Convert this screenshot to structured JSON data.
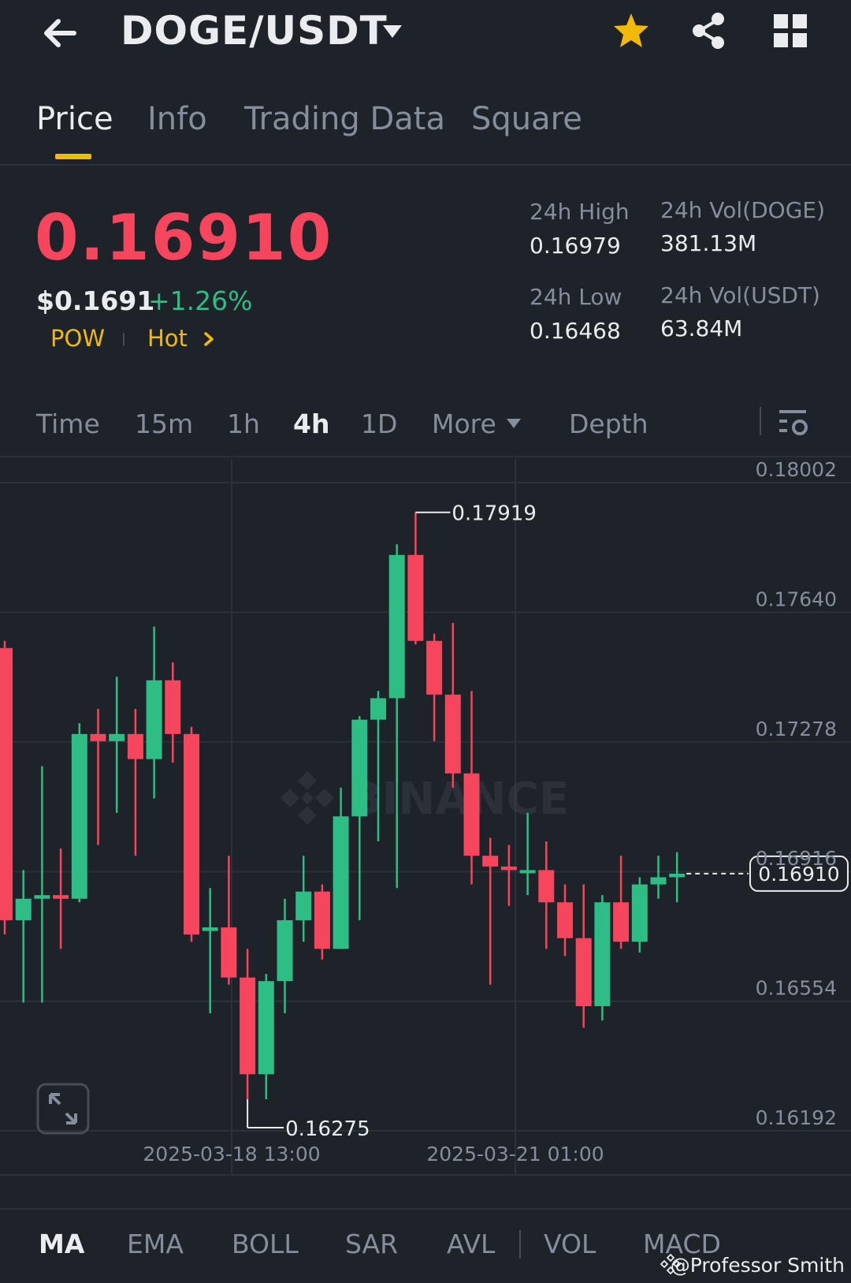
{
  "header": {
    "pair": "DOGE/USDT",
    "icons": [
      "back-arrow-icon",
      "chevron-down-icon",
      "star-icon",
      "share-icon",
      "grid-menu-icon"
    ],
    "star_color": "#f0b90b"
  },
  "tabs": [
    {
      "label": "Price",
      "active": true
    },
    {
      "label": "Info",
      "active": false
    },
    {
      "label": "Trading Data",
      "active": false
    },
    {
      "label": "Square",
      "active": false
    }
  ],
  "ticker": {
    "last_price": "0.16910",
    "usd_price": "$0.1691",
    "change": "+1.26%",
    "tags": [
      "POW",
      "Hot"
    ],
    "stats": [
      {
        "label": "24h High",
        "value": "0.16979"
      },
      {
        "label": "24h Vol(DOGE)",
        "value": "381.13M"
      },
      {
        "label": "24h Low",
        "value": "0.16468"
      },
      {
        "label": "24h Vol(USDT)",
        "value": "63.84M"
      }
    ]
  },
  "intervals": {
    "items": [
      "Time",
      "15m",
      "1h",
      "4h",
      "1D",
      "More",
      "Depth"
    ],
    "active": "4h"
  },
  "chart_data": {
    "type": "candlestick",
    "watermark": "BINANCE",
    "y_ticks": [
      0.18002,
      0.1764,
      0.17278,
      0.16916,
      0.16554,
      0.16192
    ],
    "ylim": [
      0.16192,
      0.18002
    ],
    "x_ticks": [
      "2025-03-18 13:00",
      "2025-03-21 01:00"
    ],
    "max_label": "0.17919",
    "min_label": "0.16275",
    "current_price": "0.16910",
    "up_color": "#2ebd85",
    "down_color": "#f6465d",
    "candles": [
      {
        "o": 0.1754,
        "h": 0.1756,
        "l": 0.1674,
        "c": 0.1678
      },
      {
        "o": 0.1678,
        "h": 0.1692,
        "l": 0.1655,
        "c": 0.1684
      },
      {
        "o": 0.1684,
        "h": 0.1721,
        "l": 0.1655,
        "c": 0.1685
      },
      {
        "o": 0.1685,
        "h": 0.1698,
        "l": 0.167,
        "c": 0.1684
      },
      {
        "o": 0.1684,
        "h": 0.1733,
        "l": 0.1683,
        "c": 0.173
      },
      {
        "o": 0.173,
        "h": 0.1737,
        "l": 0.1699,
        "c": 0.1728
      },
      {
        "o": 0.1728,
        "h": 0.1746,
        "l": 0.1708,
        "c": 0.173
      },
      {
        "o": 0.173,
        "h": 0.1737,
        "l": 0.1696,
        "c": 0.1723
      },
      {
        "o": 0.1723,
        "h": 0.176,
        "l": 0.1712,
        "c": 0.1745
      },
      {
        "o": 0.1745,
        "h": 0.175,
        "l": 0.1722,
        "c": 0.173
      },
      {
        "o": 0.173,
        "h": 0.1732,
        "l": 0.1672,
        "c": 0.1674
      },
      {
        "o": 0.1675,
        "h": 0.1687,
        "l": 0.1652,
        "c": 0.1676
      },
      {
        "o": 0.1676,
        "h": 0.1696,
        "l": 0.166,
        "c": 0.1662
      },
      {
        "o": 0.1662,
        "h": 0.167,
        "l": 0.1628,
        "c": 0.1635
      },
      {
        "o": 0.1635,
        "h": 0.1663,
        "l": 0.1628,
        "c": 0.1661
      },
      {
        "o": 0.1661,
        "h": 0.1684,
        "l": 0.1652,
        "c": 0.1678
      },
      {
        "o": 0.1678,
        "h": 0.1696,
        "l": 0.1672,
        "c": 0.1686
      },
      {
        "o": 0.1686,
        "h": 0.1688,
        "l": 0.1667,
        "c": 0.167
      },
      {
        "o": 0.167,
        "h": 0.1715,
        "l": 0.167,
        "c": 0.1707
      },
      {
        "o": 0.1707,
        "h": 0.1735,
        "l": 0.1678,
        "c": 0.1734
      },
      {
        "o": 0.1734,
        "h": 0.1742,
        "l": 0.17,
        "c": 0.174
      },
      {
        "o": 0.174,
        "h": 0.1783,
        "l": 0.1687,
        "c": 0.178
      },
      {
        "o": 0.178,
        "h": 0.17919,
        "l": 0.1755,
        "c": 0.1756
      },
      {
        "o": 0.1756,
        "h": 0.1758,
        "l": 0.1728,
        "c": 0.1741
      },
      {
        "o": 0.1741,
        "h": 0.1761,
        "l": 0.1715,
        "c": 0.1719
      },
      {
        "o": 0.1719,
        "h": 0.1742,
        "l": 0.1688,
        "c": 0.1696
      },
      {
        "o": 0.1696,
        "h": 0.1701,
        "l": 0.166,
        "c": 0.1693
      },
      {
        "o": 0.1693,
        "h": 0.1699,
        "l": 0.1682,
        "c": 0.1692
      },
      {
        "o": 0.1692,
        "h": 0.1708,
        "l": 0.1685,
        "c": 0.1692
      },
      {
        "o": 0.1692,
        "h": 0.17,
        "l": 0.167,
        "c": 0.1683
      },
      {
        "o": 0.1683,
        "h": 0.1688,
        "l": 0.1668,
        "c": 0.1673
      },
      {
        "o": 0.1673,
        "h": 0.1688,
        "l": 0.1648,
        "c": 0.1654
      },
      {
        "o": 0.1654,
        "h": 0.1685,
        "l": 0.165,
        "c": 0.1683
      },
      {
        "o": 0.1683,
        "h": 0.1696,
        "l": 0.167,
        "c": 0.1672
      },
      {
        "o": 0.1672,
        "h": 0.169,
        "l": 0.1669,
        "c": 0.1688
      },
      {
        "o": 0.1688,
        "h": 0.1696,
        "l": 0.1684,
        "c": 0.169
      },
      {
        "o": 0.169,
        "h": 0.1697,
        "l": 0.1683,
        "c": 0.1691
      }
    ]
  },
  "indicators": {
    "items": [
      "MA",
      "EMA",
      "BOLL",
      "SAR",
      "AVL",
      "VOL",
      "MACD"
    ],
    "active": "MA"
  },
  "watermark_user": "@Professor Smith"
}
